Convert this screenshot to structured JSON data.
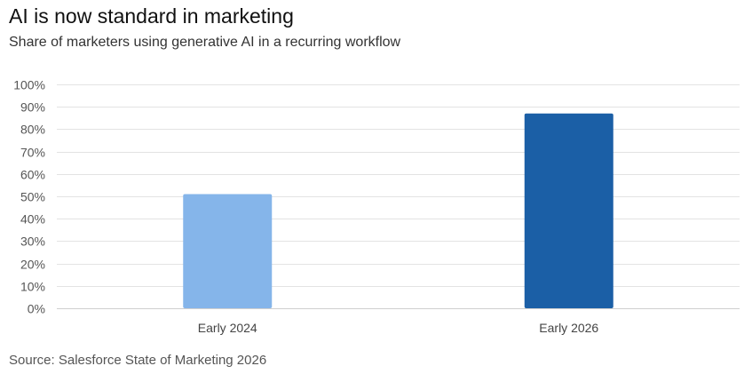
{
  "title": "AI is now standard in marketing",
  "subtitle": "Share of marketers using generative AI in a recurring workflow",
  "source": "Source: Salesforce State of Marketing 2026",
  "chart_data": {
    "type": "bar",
    "categories": [
      "Early 2024",
      "Early 2026"
    ],
    "values": [
      51,
      87
    ],
    "bar_colors": [
      "#85B5EA",
      "#1B5FA6"
    ],
    "ylim": [
      0,
      100
    ],
    "y_ticks": [
      0,
      10,
      20,
      30,
      40,
      50,
      60,
      70,
      80,
      90,
      100
    ],
    "y_tick_labels": [
      "0%",
      "10%",
      "20%",
      "30%",
      "40%",
      "50%",
      "60%",
      "70%",
      "80%",
      "90%",
      "100%"
    ],
    "xlabel": "",
    "ylabel": "",
    "grid": true,
    "legend": "none"
  }
}
